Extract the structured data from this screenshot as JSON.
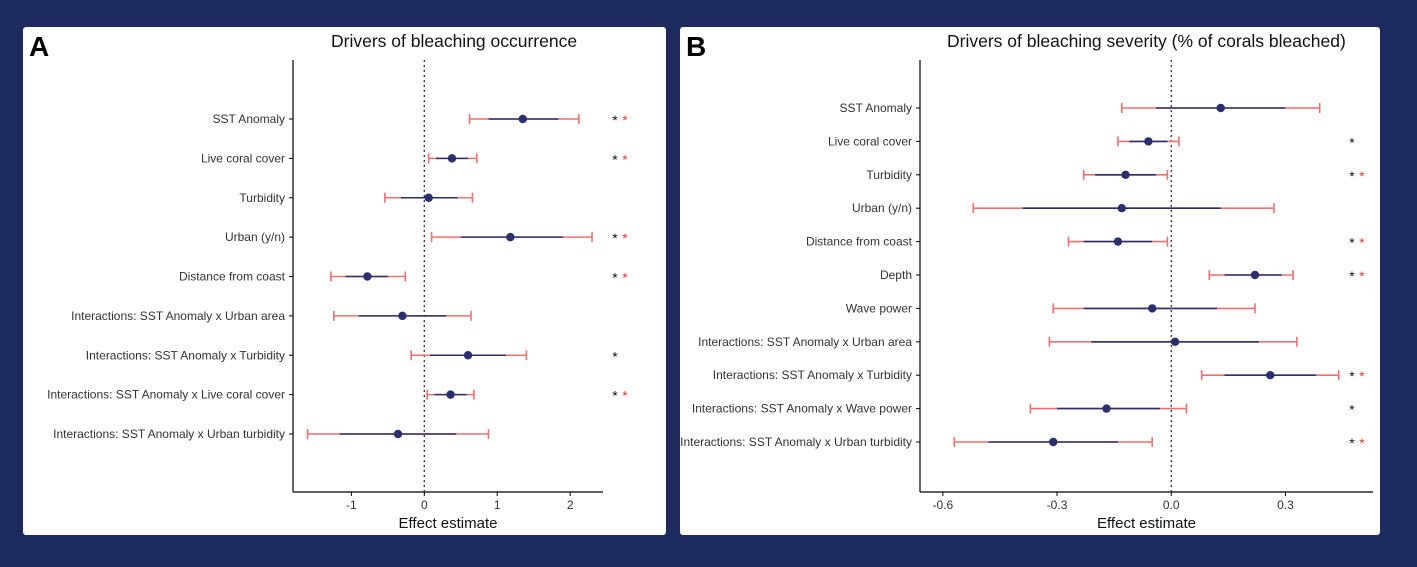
{
  "colors": {
    "point": "#2b2f6e",
    "inner_ci": "#2b2f6e",
    "outer_ci": "#f07070",
    "sig_black": "#111111",
    "sig_red": "#e23b2e",
    "background": "#1c2a5e"
  },
  "chart_data": [
    {
      "type": "forest",
      "panel_label": "A",
      "title": "Drivers of bleaching occurrence",
      "xlabel": "Effect estimate",
      "xlim": [
        -1.8,
        2.45
      ],
      "xticks": [
        -1,
        0,
        1,
        2
      ],
      "xtick_labels": [
        "-1",
        "0",
        "1",
        "2"
      ],
      "reference_line": 0,
      "rows": [
        {
          "label": "SST Anomaly",
          "estimate": 1.35,
          "inner": [
            0.88,
            1.84
          ],
          "outer": [
            0.62,
            2.12
          ],
          "sig_black": "*",
          "sig_red": "*"
        },
        {
          "label": "Live coral cover",
          "estimate": 0.38,
          "inner": [
            0.16,
            0.6
          ],
          "outer": [
            0.06,
            0.72
          ],
          "sig_black": "*",
          "sig_red": "*"
        },
        {
          "label": "Turbidity",
          "estimate": 0.06,
          "inner": [
            -0.32,
            0.46
          ],
          "outer": [
            -0.54,
            0.66
          ],
          "sig_black": "",
          "sig_red": ""
        },
        {
          "label": "Urban (y/n)",
          "estimate": 1.18,
          "inner": [
            0.5,
            1.9
          ],
          "outer": [
            0.1,
            2.3
          ],
          "sig_black": "*",
          "sig_red": "*"
        },
        {
          "label": "Distance from coast",
          "estimate": -0.78,
          "inner": [
            -1.08,
            -0.5
          ],
          "outer": [
            -1.28,
            -0.26
          ],
          "sig_black": "*",
          "sig_red": "*"
        },
        {
          "label": "Interactions: SST Anomaly x Urban area",
          "estimate": -0.3,
          "inner": [
            -0.9,
            0.3
          ],
          "outer": [
            -1.24,
            0.64
          ],
          "sig_black": "",
          "sig_red": ""
        },
        {
          "label": "Interactions: SST Anomaly x Turbidity",
          "estimate": 0.6,
          "inner": [
            0.08,
            1.12
          ],
          "outer": [
            -0.18,
            1.4
          ],
          "sig_black": "*",
          "sig_red": ""
        },
        {
          "label": "Interactions: SST Anomaly x Live coral cover",
          "estimate": 0.36,
          "inner": [
            0.14,
            0.58
          ],
          "outer": [
            0.04,
            0.68
          ],
          "sig_black": "*",
          "sig_red": "*"
        },
        {
          "label": "Interactions: SST Anomaly x Urban turbidity",
          "estimate": -0.36,
          "inner": [
            -1.16,
            0.44
          ],
          "outer": [
            -1.6,
            0.88
          ],
          "sig_black": "",
          "sig_red": ""
        }
      ]
    },
    {
      "type": "forest",
      "panel_label": "B",
      "title": "Drivers of bleaching severity (% of corals bleached)",
      "xlabel": "Effect estimate",
      "xlim": [
        -0.66,
        0.53
      ],
      "xticks": [
        -0.6,
        -0.3,
        0.0,
        0.3
      ],
      "xtick_labels": [
        "-0.6",
        "-0.3",
        "0.0",
        "0.3"
      ],
      "reference_line": 0,
      "rows": [
        {
          "label": "SST Anomaly",
          "estimate": 0.13,
          "inner": [
            -0.04,
            0.3
          ],
          "outer": [
            -0.13,
            0.39
          ],
          "sig_black": "",
          "sig_red": ""
        },
        {
          "label": "Live coral cover",
          "estimate": -0.06,
          "inner": [
            -0.11,
            -0.01
          ],
          "outer": [
            -0.14,
            0.02
          ],
          "sig_black": "*",
          "sig_red": ""
        },
        {
          "label": "Turbidity",
          "estimate": -0.12,
          "inner": [
            -0.2,
            -0.04
          ],
          "outer": [
            -0.23,
            -0.01
          ],
          "sig_black": "*",
          "sig_red": "*"
        },
        {
          "label": "Urban (y/n)",
          "estimate": -0.13,
          "inner": [
            -0.39,
            0.13
          ],
          "outer": [
            -0.52,
            0.27
          ],
          "sig_black": "",
          "sig_red": ""
        },
        {
          "label": "Distance from coast",
          "estimate": -0.14,
          "inner": [
            -0.23,
            -0.05
          ],
          "outer": [
            -0.27,
            -0.01
          ],
          "sig_black": "*",
          "sig_red": "*"
        },
        {
          "label": "Depth",
          "estimate": 0.22,
          "inner": [
            0.14,
            0.29
          ],
          "outer": [
            0.1,
            0.32
          ],
          "sig_black": "*",
          "sig_red": "*"
        },
        {
          "label": "Wave power",
          "estimate": -0.05,
          "inner": [
            -0.23,
            0.12
          ],
          "outer": [
            -0.31,
            0.22
          ],
          "sig_black": "",
          "sig_red": ""
        },
        {
          "label": "Interactions: SST Anomaly x Urban area",
          "estimate": 0.01,
          "inner": [
            -0.21,
            0.23
          ],
          "outer": [
            -0.32,
            0.33
          ],
          "sig_black": "",
          "sig_red": ""
        },
        {
          "label": "Interactions: SST Anomaly x Turbidity",
          "estimate": 0.26,
          "inner": [
            0.14,
            0.38
          ],
          "outer": [
            0.08,
            0.44
          ],
          "sig_black": "*",
          "sig_red": "*"
        },
        {
          "label": "Interactions: SST Anomaly x Wave power",
          "estimate": -0.17,
          "inner": [
            -0.3,
            -0.03
          ],
          "outer": [
            -0.37,
            0.04
          ],
          "sig_black": "*",
          "sig_red": ""
        },
        {
          "label": "Interactions: SST Anomaly x Urban turbidity",
          "estimate": -0.31,
          "inner": [
            -0.48,
            -0.14
          ],
          "outer": [
            -0.57,
            -0.05
          ],
          "sig_black": "*",
          "sig_red": "*"
        }
      ]
    }
  ]
}
